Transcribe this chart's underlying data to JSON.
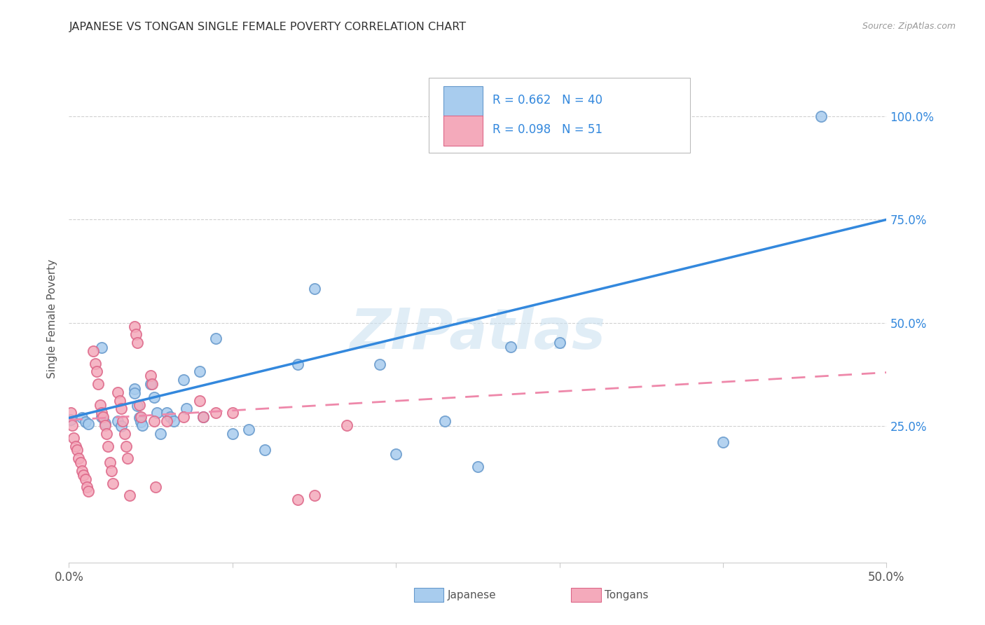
{
  "title": "JAPANESE VS TONGAN SINGLE FEMALE POVERTY CORRELATION CHART",
  "source": "Source: ZipAtlas.com",
  "ylabel": "Single Female Poverty",
  "ytick_labels": [
    "100.0%",
    "75.0%",
    "50.0%",
    "25.0%"
  ],
  "ytick_values": [
    1.0,
    0.75,
    0.5,
    0.25
  ],
  "xlim": [
    0.0,
    0.5
  ],
  "ylim": [
    -0.08,
    1.1
  ],
  "watermark": "ZIPatlas",
  "legend_label1": "Japanese",
  "legend_label2": "Tongans",
  "japanese_color": "#A8CCEE",
  "tongan_color": "#F4AABB",
  "japanese_edge_color": "#6699CC",
  "tongan_edge_color": "#DD6688",
  "japanese_line_color": "#3388DD",
  "tongan_line_color": "#EE88AA",
  "legend_text_color": "#3388DD",
  "ytick_color": "#3388DD",
  "japanese_scatter": [
    [
      0.001,
      0.265
    ],
    [
      0.008,
      0.27
    ],
    [
      0.01,
      0.26
    ],
    [
      0.012,
      0.255
    ],
    [
      0.02,
      0.44
    ],
    [
      0.02,
      0.272
    ],
    [
      0.022,
      0.258
    ],
    [
      0.03,
      0.262
    ],
    [
      0.032,
      0.25
    ],
    [
      0.04,
      0.34
    ],
    [
      0.04,
      0.33
    ],
    [
      0.042,
      0.3
    ],
    [
      0.043,
      0.27
    ],
    [
      0.044,
      0.26
    ],
    [
      0.045,
      0.252
    ],
    [
      0.05,
      0.352
    ],
    [
      0.052,
      0.32
    ],
    [
      0.054,
      0.282
    ],
    [
      0.056,
      0.232
    ],
    [
      0.06,
      0.282
    ],
    [
      0.062,
      0.272
    ],
    [
      0.064,
      0.262
    ],
    [
      0.07,
      0.362
    ],
    [
      0.072,
      0.292
    ],
    [
      0.08,
      0.382
    ],
    [
      0.082,
      0.272
    ],
    [
      0.09,
      0.462
    ],
    [
      0.1,
      0.232
    ],
    [
      0.11,
      0.242
    ],
    [
      0.12,
      0.192
    ],
    [
      0.14,
      0.4
    ],
    [
      0.15,
      0.582
    ],
    [
      0.19,
      0.4
    ],
    [
      0.2,
      0.182
    ],
    [
      0.23,
      0.262
    ],
    [
      0.25,
      0.152
    ],
    [
      0.27,
      0.442
    ],
    [
      0.3,
      0.452
    ],
    [
      0.4,
      0.212
    ],
    [
      0.46,
      1.0
    ]
  ],
  "tongan_scatter": [
    [
      0.001,
      0.282
    ],
    [
      0.002,
      0.252
    ],
    [
      0.003,
      0.222
    ],
    [
      0.004,
      0.202
    ],
    [
      0.005,
      0.192
    ],
    [
      0.006,
      0.172
    ],
    [
      0.007,
      0.162
    ],
    [
      0.008,
      0.142
    ],
    [
      0.009,
      0.132
    ],
    [
      0.01,
      0.122
    ],
    [
      0.011,
      0.102
    ],
    [
      0.012,
      0.092
    ],
    [
      0.015,
      0.432
    ],
    [
      0.016,
      0.402
    ],
    [
      0.017,
      0.382
    ],
    [
      0.018,
      0.352
    ],
    [
      0.019,
      0.302
    ],
    [
      0.02,
      0.282
    ],
    [
      0.021,
      0.272
    ],
    [
      0.022,
      0.252
    ],
    [
      0.023,
      0.232
    ],
    [
      0.024,
      0.202
    ],
    [
      0.025,
      0.162
    ],
    [
      0.026,
      0.142
    ],
    [
      0.027,
      0.112
    ],
    [
      0.03,
      0.332
    ],
    [
      0.031,
      0.312
    ],
    [
      0.032,
      0.292
    ],
    [
      0.033,
      0.262
    ],
    [
      0.034,
      0.232
    ],
    [
      0.035,
      0.202
    ],
    [
      0.036,
      0.172
    ],
    [
      0.037,
      0.082
    ],
    [
      0.04,
      0.492
    ],
    [
      0.041,
      0.472
    ],
    [
      0.042,
      0.452
    ],
    [
      0.043,
      0.302
    ],
    [
      0.044,
      0.272
    ],
    [
      0.05,
      0.372
    ],
    [
      0.051,
      0.352
    ],
    [
      0.052,
      0.262
    ],
    [
      0.053,
      0.102
    ],
    [
      0.06,
      0.262
    ],
    [
      0.07,
      0.272
    ],
    [
      0.08,
      0.312
    ],
    [
      0.082,
      0.272
    ],
    [
      0.09,
      0.282
    ],
    [
      0.1,
      0.282
    ],
    [
      0.14,
      0.072
    ],
    [
      0.15,
      0.082
    ],
    [
      0.17,
      0.252
    ]
  ],
  "japanese_trend_x": [
    0.0,
    0.5
  ],
  "japanese_trend_y": [
    0.27,
    0.75
  ],
  "tongan_trend_x": [
    0.0,
    0.5
  ],
  "tongan_trend_y": [
    0.265,
    0.38
  ],
  "background_color": "#FFFFFF",
  "grid_color": "#CCCCCC",
  "title_color": "#333333",
  "axis_label_color": "#555555",
  "legend_r1_vals": "R = 0.662   N = 40",
  "legend_r2_vals": "R = 0.098   N = 51"
}
